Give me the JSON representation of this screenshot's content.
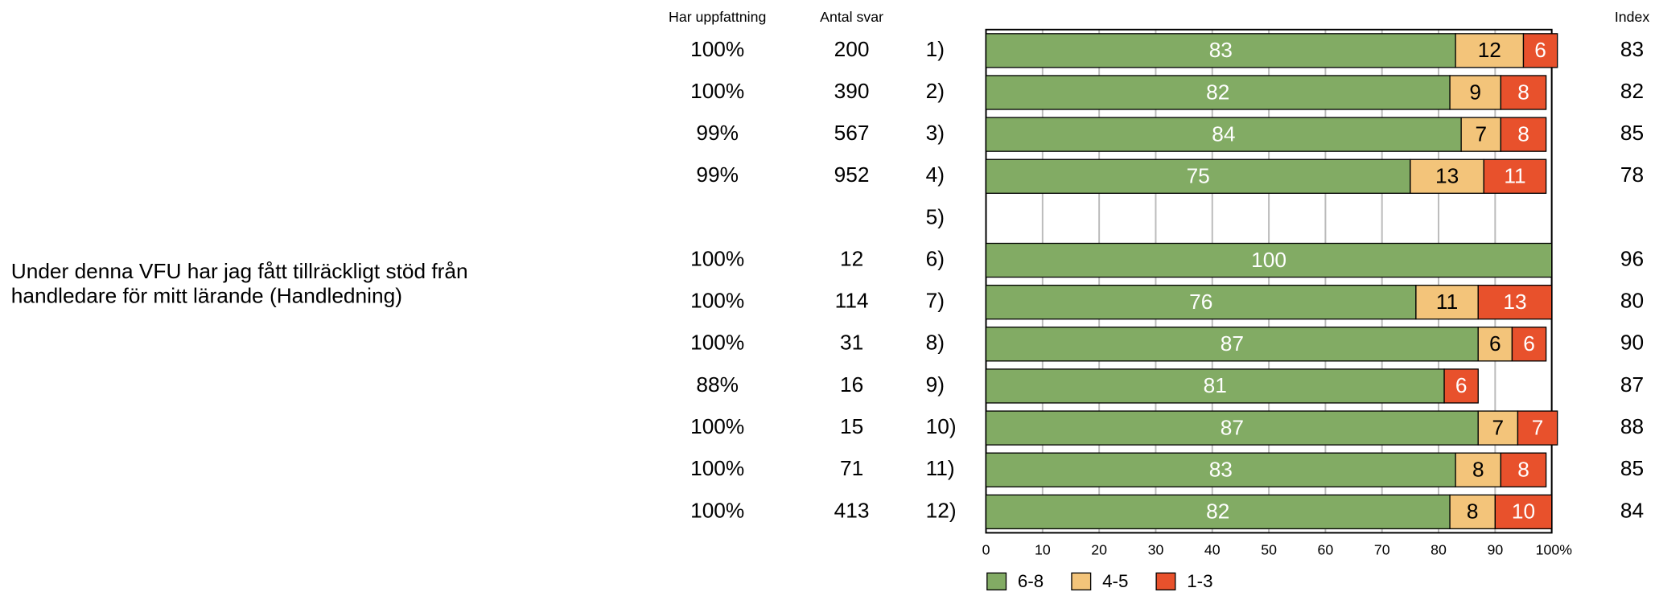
{
  "chart_data": {
    "type": "bar",
    "orientation": "horizontal",
    "stacked": true,
    "question_lines": [
      "Under denna VFU har jag fått tillräckligt stöd från",
      "handledare för mitt lärande (Handledning)"
    ],
    "categories": [
      "1)",
      "2)",
      "3)",
      "4)",
      "5)",
      "6)",
      "7)",
      "8)",
      "9)",
      "10)",
      "11)",
      "12)"
    ],
    "columns": [
      {
        "name": "Har uppfattning",
        "values": [
          100,
          100,
          99,
          99,
          null,
          100,
          100,
          100,
          88,
          100,
          100,
          100
        ],
        "value_labels": [
          "100%",
          "100%",
          "99%",
          "99%",
          null,
          "100%",
          "100%",
          "100%",
          "88%",
          "100%",
          "100%",
          "100%"
        ]
      },
      {
        "name": "Antal svar",
        "values": [
          200,
          390,
          567,
          952,
          null,
          12,
          114,
          31,
          16,
          15,
          71,
          413
        ]
      }
    ],
    "series": [
      {
        "name": "6-8",
        "color": "#82ab64",
        "values": [
          83,
          82,
          84,
          75,
          null,
          100,
          76,
          87,
          81,
          87,
          83,
          82
        ]
      },
      {
        "name": "4-5",
        "color": "#f3c47a",
        "values": [
          12,
          9,
          7,
          13,
          null,
          null,
          11,
          6,
          null,
          7,
          8,
          8
        ]
      },
      {
        "name": "1-3",
        "color": "#e8512c",
        "values": [
          6,
          8,
          8,
          11,
          null,
          null,
          13,
          6,
          6,
          7,
          8,
          10
        ]
      }
    ],
    "index": {
      "name": "Index",
      "values": [
        83,
        82,
        85,
        78,
        null,
        96,
        80,
        90,
        87,
        88,
        85,
        84
      ]
    },
    "xlim": [
      0,
      100
    ],
    "xticks": [
      0,
      10,
      20,
      30,
      40,
      50,
      60,
      70,
      80,
      90,
      {
        "value": 100,
        "label": "100%"
      }
    ],
    "grid": true
  }
}
